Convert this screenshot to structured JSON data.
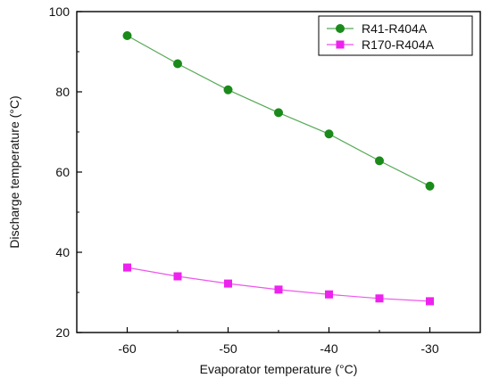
{
  "chart_data": {
    "type": "line",
    "title": "",
    "xlabel": "Evaporator temperature (°C)",
    "ylabel": "Discharge temperature (°C)",
    "xlim": [
      -65,
      -25
    ],
    "ylim": [
      20,
      100
    ],
    "xticks": [
      -60,
      -50,
      -40,
      -30
    ],
    "yticks": [
      20,
      40,
      60,
      80,
      100
    ],
    "grid": false,
    "legend_position": "top-right",
    "x": [
      -60,
      -55,
      -50,
      -45,
      -40,
      -35,
      -30
    ],
    "series": [
      {
        "name": "R41-R404A",
        "marker": "circle",
        "color": "#1a8a1a",
        "line_color": "#55a855",
        "values": [
          94.0,
          87.0,
          80.5,
          74.8,
          69.5,
          62.8,
          56.5
        ]
      },
      {
        "name": "R170-R404A",
        "marker": "square",
        "color": "#ee22ee",
        "line_color": "#ee55ee",
        "values": [
          36.2,
          34.0,
          32.2,
          30.7,
          29.5,
          28.5,
          27.8
        ]
      }
    ]
  }
}
